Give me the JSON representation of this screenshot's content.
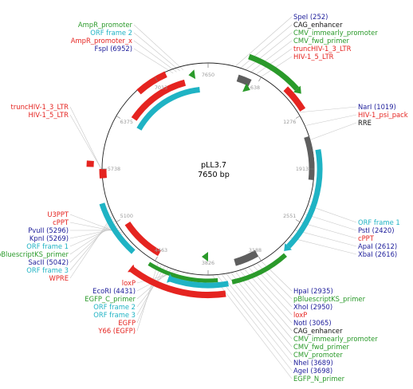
{
  "plasmid": {
    "name": "pLL3.7",
    "length_label": "7650 bp",
    "length": 7650
  },
  "colors": {
    "promoter": "#2a9a2a",
    "orf": "#1fb3c4",
    "feature_red": "#e52420",
    "enzyme": "#1c1c9a",
    "cyan_text": "#1fb3c4",
    "green_text": "#2a9a2a",
    "gray_block": "#5e5e5e"
  },
  "ticks": [
    "7650",
    "638",
    "1276",
    "1913",
    "2551",
    "3188",
    "3826",
    "4463",
    "5100",
    "5738",
    "6375",
    "7013"
  ],
  "labels": {
    "top_left": [
      {
        "text": "AmpR_promoter",
        "color": "green"
      },
      {
        "text": "ORF frame 2",
        "color": "cyan"
      },
      {
        "text": "AmpR_promoter_x",
        "color": "red"
      },
      {
        "text": "FspI (6952)",
        "color": "blue"
      }
    ],
    "top_right": [
      {
        "text": "SpeI (252)",
        "color": "blue"
      },
      {
        "text": "CAG_enhancer",
        "color": "black"
      },
      {
        "text": "CMV_immearly_promoter",
        "color": "green"
      },
      {
        "text": "CMV_fwd_primer",
        "color": "green"
      },
      {
        "text": "truncHIV-1_3_LTR",
        "color": "red"
      },
      {
        "text": "HIV-1_5_LTR",
        "color": "red"
      }
    ],
    "right_mid": [
      {
        "text": "NarI (1019)",
        "color": "blue"
      },
      {
        "text": "HIV-1_psi_pack",
        "color": "red"
      },
      {
        "text": "RRE",
        "color": "black"
      }
    ],
    "left_upper": [
      {
        "text": "truncHIV-1_3_LTR",
        "color": "red"
      },
      {
        "text": "HIV-1_5_LTR",
        "color": "red"
      }
    ],
    "left_lower": [
      {
        "text": "U3PPT",
        "color": "red"
      },
      {
        "text": "cPPT",
        "color": "red"
      },
      {
        "text": "PvuII (5296)",
        "color": "blue"
      },
      {
        "text": "KpnI (5269)",
        "color": "blue"
      },
      {
        "text": "ORF frame 1",
        "color": "cyan"
      },
      {
        "text": "pBluescriptKS_primer",
        "color": "green"
      },
      {
        "text": "SacII (5042)",
        "color": "blue"
      },
      {
        "text": "ORF frame 3",
        "color": "cyan"
      },
      {
        "text": "WPRE",
        "color": "red"
      }
    ],
    "right_lower": [
      {
        "text": "ORF frame 1",
        "color": "cyan"
      },
      {
        "text": "PstI (2420)",
        "color": "blue"
      },
      {
        "text": "cPPT",
        "color": "red"
      },
      {
        "text": "ApaI (2612)",
        "color": "blue"
      },
      {
        "text": "XbaI (2616)",
        "color": "blue"
      }
    ],
    "bottom_left": [
      {
        "text": "loxP",
        "color": "red"
      },
      {
        "text": "EcoRI (4431)",
        "color": "blue"
      },
      {
        "text": "EGFP_C_primer",
        "color": "green"
      },
      {
        "text": "ORF frame 2",
        "color": "cyan"
      },
      {
        "text": "ORF frame 3",
        "color": "cyan"
      },
      {
        "text": "EGFP",
        "color": "red"
      },
      {
        "text": "Y66 (EGFP)",
        "color": "red"
      }
    ],
    "bottom_right": [
      {
        "text": "HpaI (2935)",
        "color": "blue"
      },
      {
        "text": "pBluescriptKS_primer",
        "color": "green"
      },
      {
        "text": "XhoI (2950)",
        "color": "blue"
      },
      {
        "text": "loxP",
        "color": "red"
      },
      {
        "text": "NotI (3065)",
        "color": "blue"
      },
      {
        "text": "CAG_enhancer",
        "color": "black"
      },
      {
        "text": "CMV_immearly_promoter",
        "color": "green"
      },
      {
        "text": "CMV_fwd_primer",
        "color": "green"
      },
      {
        "text": "CMV_promoter",
        "color": "green"
      },
      {
        "text": "NheI (3689)",
        "color": "blue"
      },
      {
        "text": "AgeI (3698)",
        "color": "blue"
      },
      {
        "text": "EGFP_N_primer",
        "color": "green"
      }
    ]
  }
}
